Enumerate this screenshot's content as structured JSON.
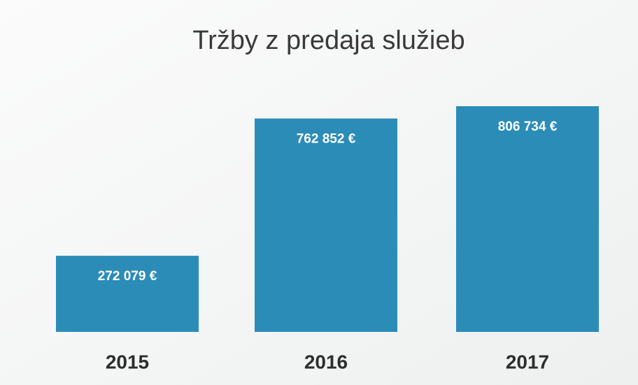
{
  "chart_data": {
    "type": "bar",
    "title": "Tržby z predaja služieb",
    "categories": [
      "2015",
      "2016",
      "2017"
    ],
    "values": [
      272079,
      762852,
      806734
    ],
    "value_labels": [
      "272 079 €",
      "762 852 €",
      "806 734 €"
    ],
    "color": "#2b8cb8"
  }
}
